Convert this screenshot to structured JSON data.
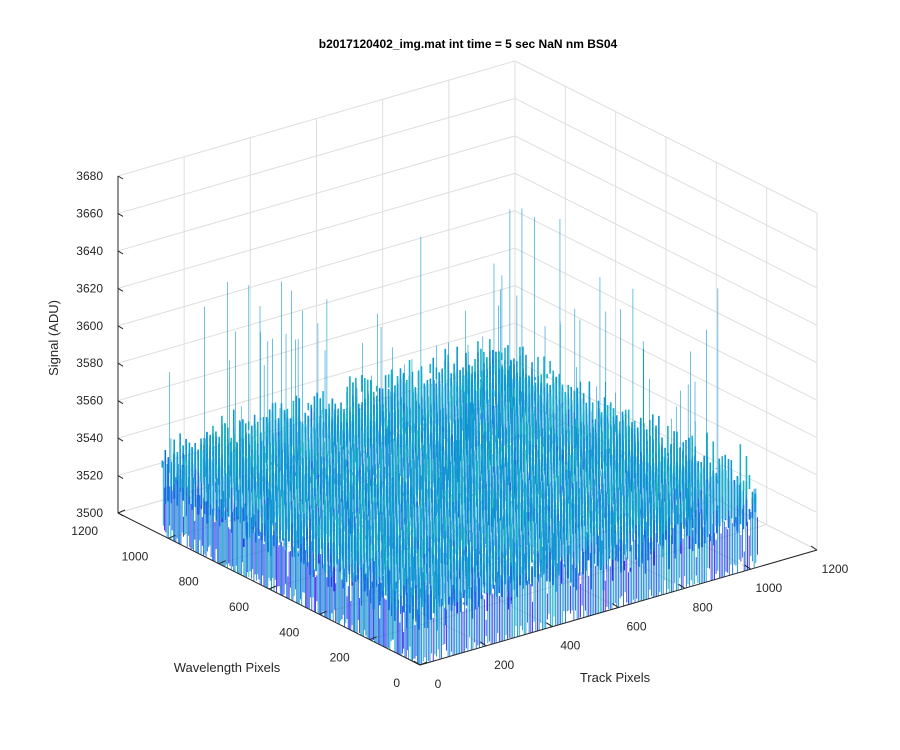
{
  "chart_data": {
    "type": "surface",
    "title": "b2017120402_img.mat int time = 5 sec  NaN nm BS04",
    "xlabel": "Track Pixels",
    "ylabel": "Wavelength Pixels",
    "zlabel": "Signal (ADU)",
    "xlim": [
      0,
      1200
    ],
    "ylim": [
      0,
      1200
    ],
    "zlim": [
      3500,
      3680
    ],
    "x_ticks": [
      "0",
      "200",
      "400",
      "600",
      "800",
      "1000",
      "1200"
    ],
    "y_ticks": [
      "0",
      "200",
      "400",
      "600",
      "800",
      "1000",
      "1200"
    ],
    "z_ticks": [
      "3500",
      "3520",
      "3540",
      "3560",
      "3580",
      "3600",
      "3620",
      "3640",
      "3660",
      "3680"
    ],
    "grid": true,
    "surface": {
      "x_extent": [
        0,
        1024
      ],
      "y_extent": [
        0,
        1024
      ],
      "mean_signal": 3535,
      "noise_range": [
        3510,
        3565
      ],
      "spike_max": 3640
    },
    "colormap": [
      "#3a2ef0",
      "#1770e0",
      "#1098d2",
      "#19b2c4",
      "#35c3a8"
    ]
  }
}
